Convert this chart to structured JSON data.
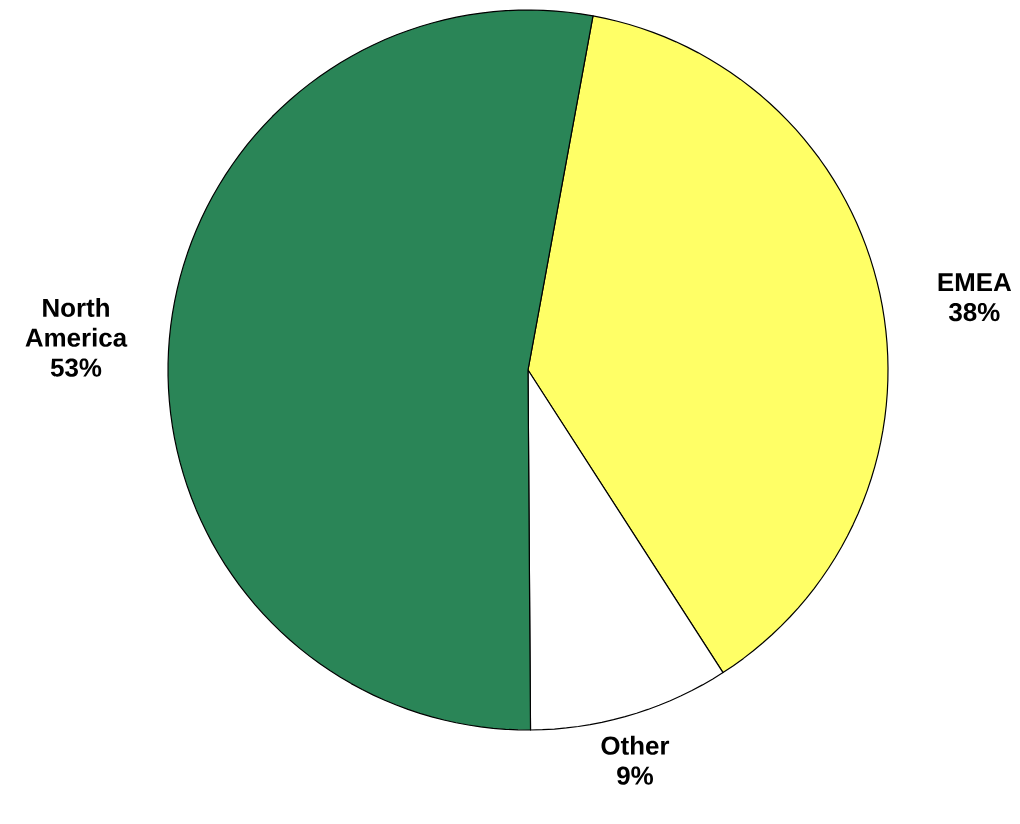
{
  "chart_data": {
    "type": "pie",
    "categories": [
      "EMEA",
      "Other",
      "North America"
    ],
    "values": [
      38,
      9,
      53
    ],
    "value_labels": [
      "38%",
      "9%",
      "53%"
    ],
    "colors": [
      "#ffff66",
      "#ffffff",
      "#2a8557"
    ]
  }
}
